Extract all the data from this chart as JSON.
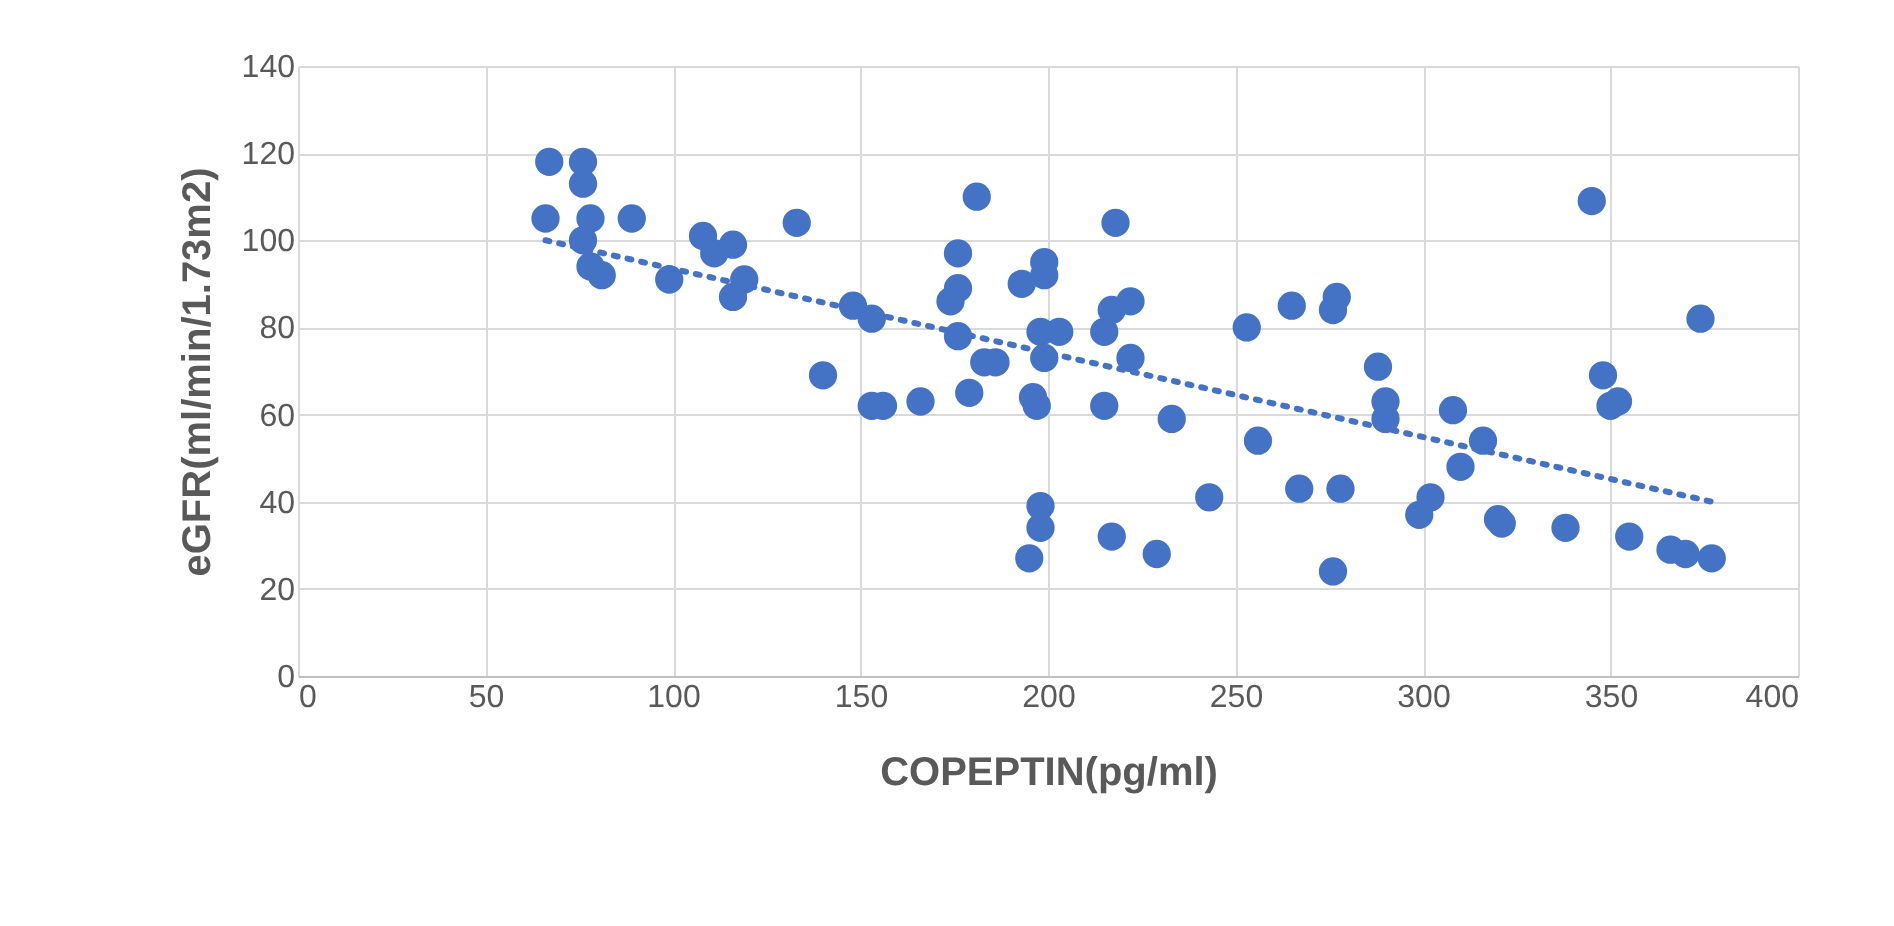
{
  "chart_data": {
    "type": "scatter",
    "xlabel": "COPEPTIN(pg/ml)",
    "ylabel": "eGFR(ml/min/1.73m2)",
    "xlim": [
      0,
      400
    ],
    "xticks": [
      0,
      50,
      100,
      150,
      200,
      250,
      300,
      350,
      400
    ],
    "ylim": [
      0,
      140
    ],
    "yticks": [
      0,
      20,
      40,
      60,
      80,
      100,
      120,
      140
    ],
    "grid": true,
    "series": [
      {
        "color": "#4472c4",
        "marker": "circle",
        "x": [
          67,
          76,
          76,
          66,
          78,
          89,
          76,
          78,
          81,
          99,
          108,
          111,
          116,
          116,
          119,
          133,
          140,
          148,
          153,
          153,
          156,
          166,
          174,
          176,
          176,
          176,
          179,
          181,
          183,
          186,
          193,
          195,
          196,
          197,
          198,
          198,
          198,
          199,
          199,
          199,
          203,
          215,
          215,
          217,
          217,
          218,
          222,
          222,
          229,
          233,
          243,
          253,
          256,
          265,
          267,
          276,
          277,
          276,
          278,
          288,
          290,
          290,
          299,
          302,
          308,
          310,
          316,
          320,
          321,
          338,
          345,
          348,
          350,
          352,
          355,
          366,
          370,
          374,
          377
        ],
        "values": [
          118,
          118,
          113,
          105,
          105,
          105,
          100,
          94,
          92,
          91,
          101,
          97,
          99,
          87,
          91,
          104,
          69,
          85,
          82,
          62,
          62,
          63,
          86,
          97,
          89,
          78,
          65,
          110,
          72,
          72,
          90,
          27,
          64,
          62,
          79,
          39,
          34,
          95,
          92,
          73,
          79,
          79,
          62,
          84,
          32,
          104,
          86,
          73,
          28,
          59,
          41,
          80,
          54,
          85,
          43,
          84,
          87,
          24,
          43,
          71,
          63,
          59,
          37,
          41,
          61,
          48,
          54,
          36,
          35,
          34,
          109,
          69,
          62,
          63,
          32,
          29,
          28,
          82,
          27
        ]
      },
      {
        "type": "line",
        "color": "#4472c4",
        "line_style": "dotted",
        "marker": "none",
        "x": [
          66,
          377
        ],
        "values": [
          100,
          40
        ]
      }
    ]
  }
}
